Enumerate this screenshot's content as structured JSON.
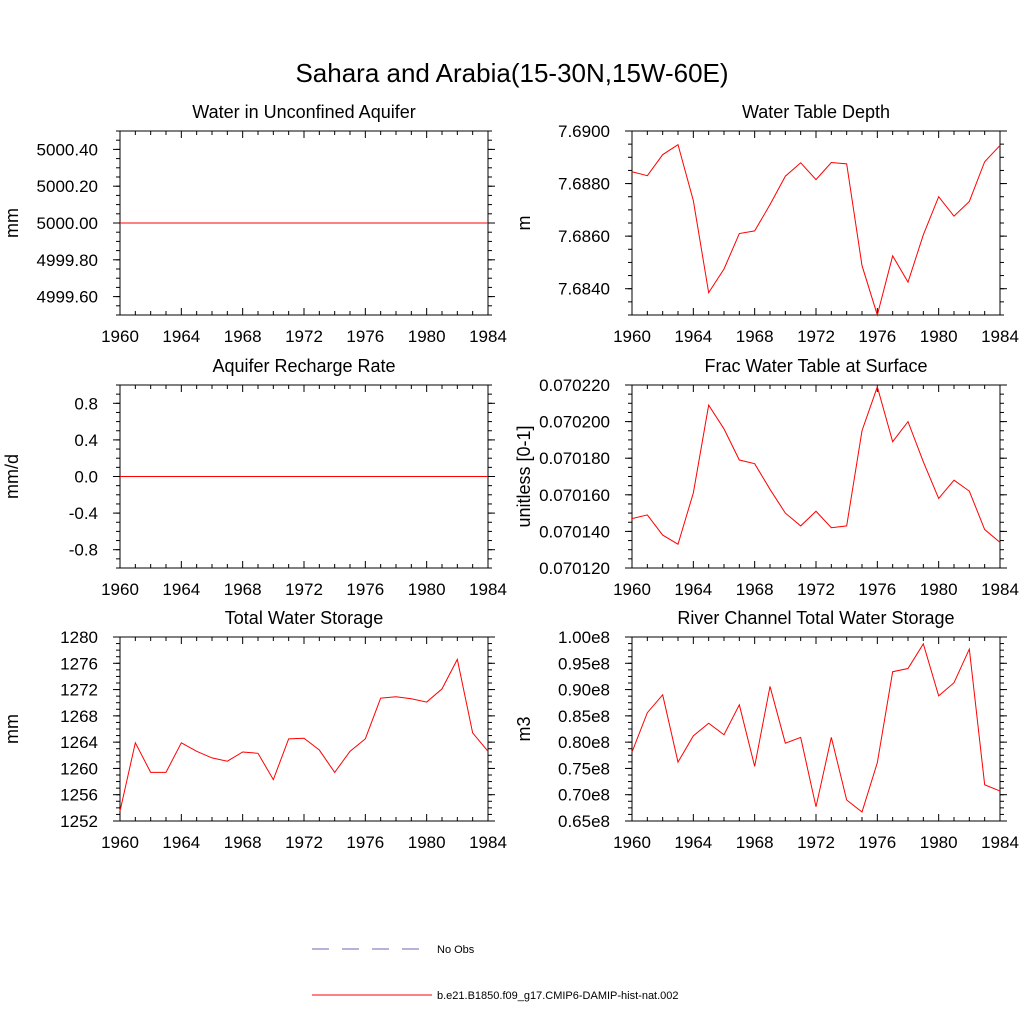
{
  "page_title": "Sahara and Arabia(15-30N,15W-60E)",
  "colors": {
    "model_line": "#ff0000",
    "obs_line": "#6a6ab0",
    "axis": "#000000"
  },
  "legend": [
    {
      "label": "No Obs",
      "style": "dashed",
      "color": "#6a6ab0"
    },
    {
      "label": "b.e21.B1850.f09_g17.CMIP6-DAMIP-hist-nat.002",
      "style": "solid",
      "color": "#ff0000"
    }
  ],
  "chart_data": [
    {
      "type": "line",
      "title": "Water in Unconfined Aquifer",
      "ylabel": "mm",
      "xlim": [
        1960,
        1984
      ],
      "xticks": [
        1960,
        1964,
        1968,
        1972,
        1976,
        1980,
        1984
      ],
      "ylim": [
        4999.5,
        5000.5
      ],
      "yticks": [
        4999.6,
        4999.8,
        5000.0,
        5000.2,
        5000.4
      ],
      "ytick_labels": [
        "4999.60",
        "4999.80",
        "5000.00",
        "5000.20",
        "5000.40"
      ],
      "x": [
        1960,
        1961,
        1962,
        1963,
        1964,
        1965,
        1966,
        1967,
        1968,
        1969,
        1970,
        1971,
        1972,
        1973,
        1974,
        1975,
        1976,
        1977,
        1978,
        1979,
        1980,
        1981,
        1982,
        1983,
        1984
      ],
      "series": [
        {
          "values": [
            5000,
            5000,
            5000,
            5000,
            5000,
            5000,
            5000,
            5000,
            5000,
            5000,
            5000,
            5000,
            5000,
            5000,
            5000,
            5000,
            5000,
            5000,
            5000,
            5000,
            5000,
            5000,
            5000,
            5000,
            5000
          ]
        }
      ]
    },
    {
      "type": "line",
      "title": "Water Table Depth",
      "ylabel": "m",
      "xlim": [
        1960,
        1984
      ],
      "xticks": [
        1960,
        1964,
        1968,
        1972,
        1976,
        1980,
        1984
      ],
      "ylim": [
        7.683,
        7.69
      ],
      "yticks": [
        7.684,
        7.686,
        7.688,
        7.69
      ],
      "ytick_labels": [
        "7.6840",
        "7.6860",
        "7.6880",
        "7.6900"
      ],
      "x": [
        1960,
        1961,
        1962,
        1963,
        1964,
        1965,
        1966,
        1967,
        1968,
        1969,
        1970,
        1971,
        1972,
        1973,
        1974,
        1975,
        1976,
        1977,
        1978,
        1979,
        1980,
        1981,
        1982,
        1983,
        1984
      ],
      "series": [
        {
          "values": [
            7.68845,
            7.6883,
            7.6891,
            7.68948,
            7.68735,
            7.68385,
            7.68475,
            7.6861,
            7.6862,
            7.6872,
            7.68828,
            7.68879,
            7.68815,
            7.6888,
            7.68875,
            7.68488,
            7.683,
            7.68525,
            7.68425,
            7.68605,
            7.6875,
            7.68676,
            7.68732,
            7.68883,
            7.68945
          ]
        }
      ]
    },
    {
      "type": "line",
      "title": "Aquifer Recharge Rate",
      "ylabel": "mm/d",
      "xlim": [
        1960,
        1984
      ],
      "xticks": [
        1960,
        1964,
        1968,
        1972,
        1976,
        1980,
        1984
      ],
      "ylim": [
        -1.0,
        1.0
      ],
      "yticks": [
        -0.8,
        -0.4,
        0.0,
        0.4,
        0.8
      ],
      "ytick_labels": [
        "-0.8",
        "-0.4",
        "0.0",
        "0.4",
        "0.8"
      ],
      "x": [
        1960,
        1961,
        1962,
        1963,
        1964,
        1965,
        1966,
        1967,
        1968,
        1969,
        1970,
        1971,
        1972,
        1973,
        1974,
        1975,
        1976,
        1977,
        1978,
        1979,
        1980,
        1981,
        1982,
        1983,
        1984
      ],
      "series": [
        {
          "values": [
            0,
            0,
            0,
            0,
            0,
            0,
            0,
            0,
            0,
            0,
            0,
            0,
            0,
            0,
            0,
            0,
            0,
            0,
            0,
            0,
            0,
            0,
            0,
            0,
            0
          ]
        }
      ]
    },
    {
      "type": "line",
      "title": "Frac Water Table at Surface",
      "ylabel": "unitless [0-1]",
      "xlim": [
        1960,
        1984
      ],
      "xticks": [
        1960,
        1964,
        1968,
        1972,
        1976,
        1980,
        1984
      ],
      "ylim": [
        0.07012,
        0.07022
      ],
      "yticks": [
        0.07012,
        0.07014,
        0.07016,
        0.07018,
        0.0702,
        0.07022
      ],
      "ytick_labels": [
        "0.070120",
        "0.070140",
        "0.070160",
        "0.070180",
        "0.070200",
        "0.070220"
      ],
      "x": [
        1960,
        1961,
        1962,
        1963,
        1964,
        1965,
        1966,
        1967,
        1968,
        1969,
        1970,
        1971,
        1972,
        1973,
        1974,
        1975,
        1976,
        1977,
        1978,
        1979,
        1980,
        1981,
        1982,
        1983,
        1984
      ],
      "series": [
        {
          "values": [
            0.070147,
            0.070149,
            0.070138,
            0.070133,
            0.070161,
            0.070209,
            0.070196,
            0.070179,
            0.070177,
            0.070163,
            0.07015,
            0.070143,
            0.070151,
            0.070142,
            0.070143,
            0.070195,
            0.070219,
            0.070189,
            0.0702,
            0.070178,
            0.070158,
            0.070168,
            0.070162,
            0.070141,
            0.070134
          ]
        }
      ]
    },
    {
      "type": "line",
      "title": "Total Water Storage",
      "ylabel": "mm",
      "xlim": [
        1960,
        1984
      ],
      "xticks": [
        1960,
        1964,
        1968,
        1972,
        1976,
        1980,
        1984
      ],
      "ylim": [
        1252,
        1280
      ],
      "yticks": [
        1252,
        1256,
        1260,
        1264,
        1268,
        1272,
        1276,
        1280
      ],
      "ytick_labels": [
        "1252",
        "1256",
        "1260",
        "1264",
        "1268",
        "1272",
        "1276",
        "1280"
      ],
      "x": [
        1960,
        1961,
        1962,
        1963,
        1964,
        1965,
        1966,
        1967,
        1968,
        1969,
        1970,
        1971,
        1972,
        1973,
        1974,
        1975,
        1976,
        1977,
        1978,
        1979,
        1980,
        1981,
        1982,
        1983,
        1984
      ],
      "series": [
        {
          "values": [
            1253.5,
            1263.9,
            1259.4,
            1259.4,
            1263.9,
            1262.6,
            1261.6,
            1261.1,
            1262.5,
            1262.3,
            1258.3,
            1264.5,
            1264.6,
            1262.8,
            1259.4,
            1262.6,
            1264.5,
            1270.7,
            1270.9,
            1270.6,
            1270.1,
            1272.1,
            1276.6,
            1265.4,
            1262.6
          ]
        }
      ]
    },
    {
      "type": "line",
      "title": "River Channel Total Water Storage",
      "ylabel": "m3",
      "xlim": [
        1960,
        1984
      ],
      "xticks": [
        1960,
        1964,
        1968,
        1972,
        1976,
        1980,
        1984
      ],
      "ylim": [
        0.65,
        1.0
      ],
      "yticks": [
        0.65,
        0.7,
        0.75,
        0.8,
        0.85,
        0.9,
        0.95,
        1.0
      ],
      "ytick_labels": [
        "0.65e8",
        "0.70e8",
        "0.75e8",
        "0.80e8",
        "0.85e8",
        "0.90e8",
        "0.95e8",
        "1.00e8"
      ],
      "x": [
        1960,
        1961,
        1962,
        1963,
        1964,
        1965,
        1966,
        1967,
        1968,
        1969,
        1970,
        1971,
        1972,
        1973,
        1974,
        1975,
        1976,
        1977,
        1978,
        1979,
        1980,
        1981,
        1982,
        1983,
        1984
      ],
      "series": [
        {
          "values": [
            0.781,
            0.856,
            0.89,
            0.762,
            0.812,
            0.836,
            0.814,
            0.871,
            0.754,
            0.906,
            0.798,
            0.809,
            0.677,
            0.809,
            0.69,
            0.667,
            0.761,
            0.934,
            0.94,
            0.987,
            0.888,
            0.913,
            0.977,
            0.719,
            0.707
          ]
        }
      ]
    }
  ]
}
